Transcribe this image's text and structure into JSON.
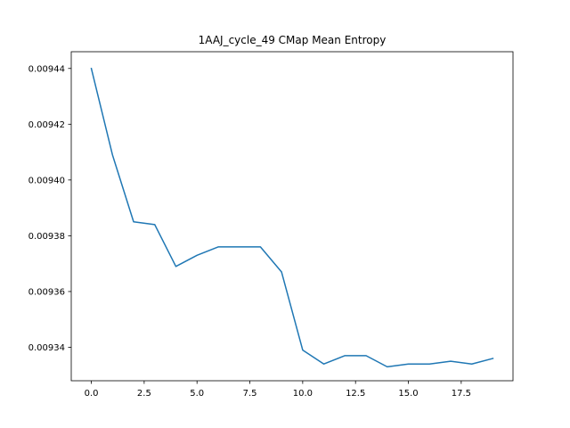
{
  "chart_data": {
    "type": "line",
    "title": "1AAJ_cycle_49 CMap Mean Entropy",
    "xlabel": "",
    "ylabel": "",
    "xlim": [
      -0.95,
      19.95
    ],
    "ylim": [
      0.009328,
      0.009446
    ],
    "x_ticks": [
      0,
      2.5,
      5,
      7.5,
      10,
      12.5,
      15,
      17.5
    ],
    "x_tick_labels": [
      "0.0",
      "2.5",
      "5.0",
      "7.5",
      "10.0",
      "12.5",
      "15.0",
      "17.5"
    ],
    "y_ticks": [
      0.00934,
      0.00936,
      0.00938,
      0.0094,
      0.00942,
      0.00944
    ],
    "y_tick_labels": [
      "0.00934",
      "0.00936",
      "0.00938",
      "0.00940",
      "0.00942",
      "0.00944"
    ],
    "grid": false,
    "series": [
      {
        "color": "#1f77b4",
        "x": [
          0,
          1,
          2,
          3,
          4,
          5,
          6,
          7,
          8,
          9,
          10,
          11,
          12,
          13,
          14,
          15,
          16,
          17,
          18,
          19
        ],
        "values": [
          0.00944,
          0.009409,
          0.009385,
          0.009384,
          0.009369,
          0.009373,
          0.009376,
          0.009376,
          0.009376,
          0.009367,
          0.009339,
          0.009334,
          0.009337,
          0.009337,
          0.009333,
          0.009334,
          0.009334,
          0.009335,
          0.009334,
          0.009336
        ]
      }
    ]
  }
}
